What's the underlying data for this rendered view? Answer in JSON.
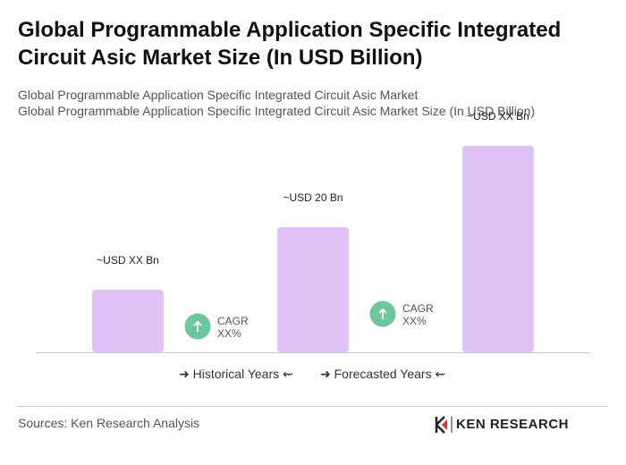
{
  "chart_data": {
    "type": "bar",
    "title": "Global Programmable Application Specific Integrated Circuit Asic Market Size (In USD Billion)",
    "subtitle": [
      "Global Programmable Application Specific Integrated Circuit Asic Market",
      "Global Programmable Application Specific Integrated Circuit Asic Market Size (In USD Billion)"
    ],
    "values": [
      10,
      20,
      33
    ],
    "value_labels": [
      "~USD XX Bn",
      "~USD 20 Bn",
      "~USD XX Bn"
    ],
    "color": "#dfc3f8",
    "annotations": [
      "CAGR XX%",
      "CAGR XX%"
    ],
    "legend": [
      "Historical Years",
      "Forecasted Years"
    ]
  },
  "footer": {
    "source": "Sources: Ken Research Analysis",
    "logo": "KEN RESEARCH"
  }
}
